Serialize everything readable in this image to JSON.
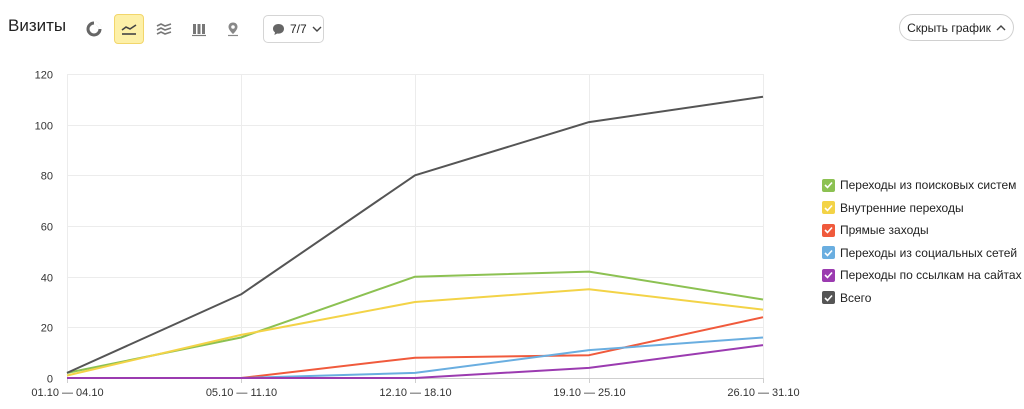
{
  "header": {
    "title": "Визиты",
    "comments_label": "7/7",
    "hide_chart_label": "Скрыть график",
    "tools": [
      {
        "name": "pie-chart-icon",
        "active": false
      },
      {
        "name": "line-chart-icon",
        "active": true
      },
      {
        "name": "area-chart-icon",
        "active": false
      },
      {
        "name": "bar-chart-icon",
        "active": false
      },
      {
        "name": "map-pin-icon",
        "active": false
      }
    ]
  },
  "chart_data": {
    "type": "line",
    "categories": [
      "01.10 — 04.10",
      "05.10 — 11.10",
      "12.10 — 18.10",
      "19.10 — 25.10",
      "26.10 — 31.10"
    ],
    "ylim": [
      0,
      120
    ],
    "yticks": [
      0,
      20,
      40,
      60,
      80,
      100,
      120
    ],
    "grid": true,
    "legend_position": "right",
    "series": [
      {
        "name": "Переходы из поисковых систем",
        "color": "#8cc152",
        "values": [
          2,
          16,
          40,
          42,
          31
        ]
      },
      {
        "name": "Внутренние переходы",
        "color": "#f3d347",
        "values": [
          1,
          17,
          30,
          35,
          27
        ]
      },
      {
        "name": "Прямые заходы",
        "color": "#f05a3c",
        "values": [
          0,
          0,
          8,
          9,
          24
        ]
      },
      {
        "name": "Переходы из социальных сетей",
        "color": "#6aaee0",
        "values": [
          0,
          0,
          2,
          11,
          16
        ]
      },
      {
        "name": "Переходы по ссылкам на сайтах",
        "color": "#9b3bb0",
        "values": [
          0,
          0,
          0,
          4,
          13
        ]
      },
      {
        "name": "Всего",
        "color": "#555555",
        "values": [
          2,
          33,
          80,
          101,
          111
        ]
      }
    ]
  }
}
